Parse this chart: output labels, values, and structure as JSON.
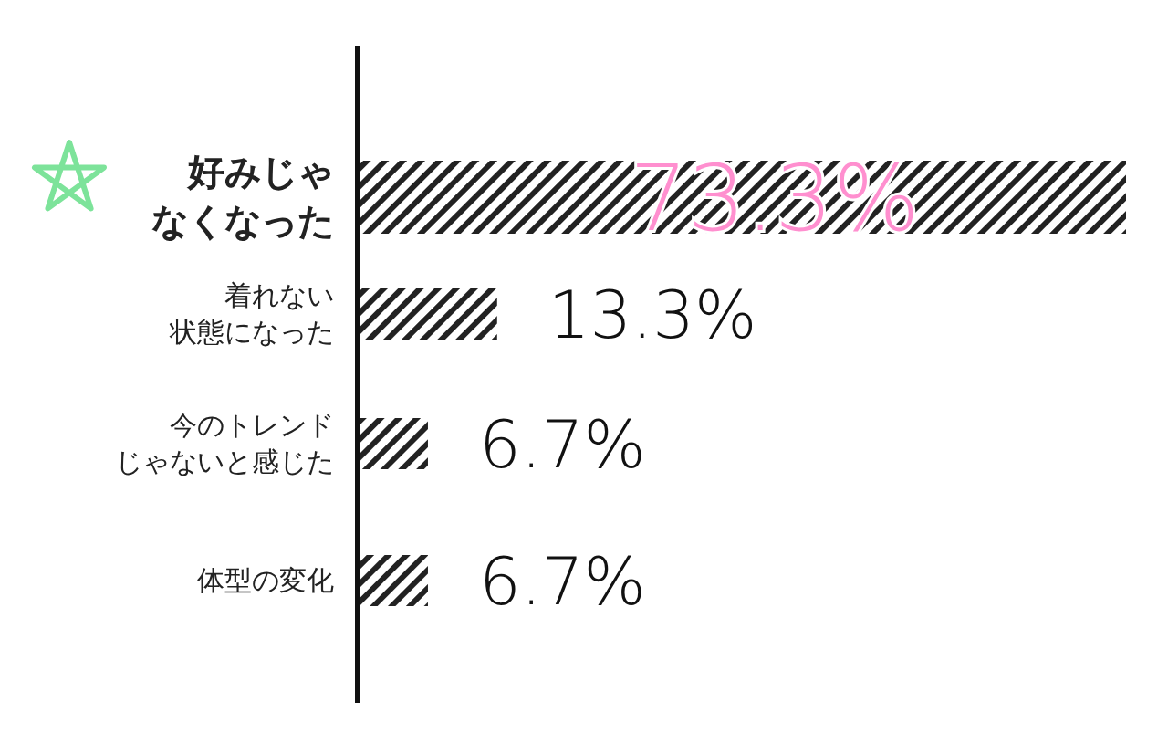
{
  "chart_data": {
    "type": "bar",
    "orientation": "horizontal",
    "categories": [
      "好みじゃなくなった",
      "着れない状態になった",
      "今のトレンドじゃないと感じた",
      "体型の変化"
    ],
    "values": [
      73.3,
      13.3,
      6.7,
      6.7
    ],
    "value_labels": [
      "73.3%",
      "13.3%",
      "6.7%",
      "6.7%"
    ],
    "color": "#222222"
  }
}
